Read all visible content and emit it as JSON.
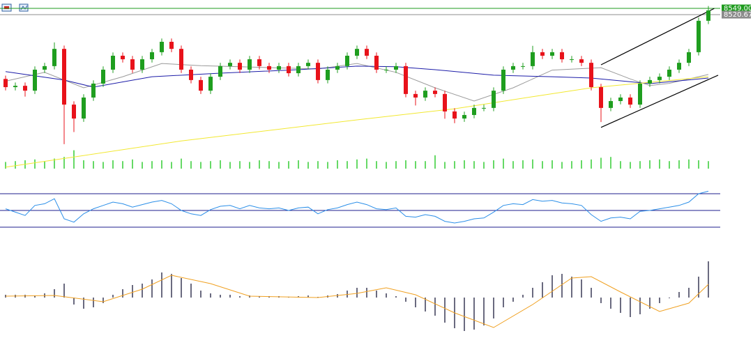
{
  "chart_data": [
    {
      "type": "candlestick",
      "open": [
        8230,
        8193,
        8199,
        8177,
        8272,
        8288,
        8366,
        8114,
        8051,
        8146,
        8209,
        8272,
        8335,
        8319,
        8272,
        8319,
        8351,
        8398,
        8366,
        8272,
        8225,
        8177,
        8240,
        8288,
        8303,
        8272,
        8319,
        8288,
        8272,
        8288,
        8256,
        8288,
        8303,
        8225,
        8272,
        8288,
        8335,
        8366,
        8335,
        8272,
        8272,
        8288,
        8162,
        8146,
        8177,
        8162,
        8083,
        8051,
        8067,
        8099,
        8099,
        8177,
        8272,
        8288,
        8288,
        8351,
        8335,
        8351,
        8319,
        8319,
        8303,
        8193,
        8099,
        8130,
        8146,
        8114,
        8209,
        8225,
        8240,
        8272,
        8303,
        8351,
        8493
      ],
      "high": [
        8245,
        8214,
        8214,
        8287,
        8303,
        8395,
        8381,
        8129,
        8161,
        8224,
        8287,
        8350,
        8350,
        8334,
        8334,
        8366,
        8413,
        8413,
        8381,
        8287,
        8240,
        8255,
        8303,
        8318,
        8318,
        8334,
        8334,
        8303,
        8303,
        8303,
        8303,
        8318,
        8318,
        8287,
        8303,
        8350,
        8381,
        8381,
        8350,
        8287,
        8303,
        8303,
        8177,
        8192,
        8192,
        8177,
        8098,
        8082,
        8114,
        8114,
        8192,
        8287,
        8303,
        8303,
        8380,
        8366,
        8366,
        8366,
        8334,
        8334,
        8318,
        8208,
        8145,
        8161,
        8161,
        8224,
        8240,
        8255,
        8287,
        8318,
        8366,
        8508,
        8560
      ],
      "low": [
        8178,
        8178,
        8150,
        8162,
        8257,
        8273,
        7935,
        7990,
        8036,
        8131,
        8194,
        8257,
        8304,
        8257,
        8257,
        8304,
        8336,
        8351,
        8257,
        8210,
        8162,
        8162,
        8225,
        8273,
        8257,
        8257,
        8273,
        8257,
        8257,
        8241,
        8241,
        8273,
        8210,
        8210,
        8257,
        8273,
        8320,
        8320,
        8257,
        8257,
        8257,
        8147,
        8110,
        8131,
        8147,
        8050,
        8030,
        8036,
        8052,
        8084,
        8084,
        8162,
        8257,
        8273,
        8273,
        8320,
        8320,
        8304,
        8304,
        8288,
        8178,
        8035,
        8084,
        8115,
        8099,
        8099,
        8194,
        8210,
        8225,
        8257,
        8288,
        8336,
        8478
      ],
      "close": [
        8193,
        8199,
        8177,
        8272,
        8288,
        8366,
        8114,
        8051,
        8146,
        8209,
        8272,
        8335,
        8319,
        8272,
        8319,
        8351,
        8398,
        8366,
        8272,
        8225,
        8177,
        8240,
        8288,
        8303,
        8272,
        8319,
        8288,
        8272,
        8288,
        8256,
        8288,
        8303,
        8225,
        8272,
        8288,
        8335,
        8366,
        8335,
        8272,
        8272,
        8288,
        8162,
        8146,
        8177,
        8162,
        8083,
        8051,
        8067,
        8099,
        8099,
        8177,
        8272,
        8288,
        8288,
        8351,
        8335,
        8351,
        8319,
        8319,
        8303,
        8193,
        8099,
        8130,
        8146,
        8114,
        8209,
        8225,
        8240,
        8272,
        8303,
        8351,
        8493,
        8540
      ],
      "up_color": "#1f9e1f",
      "down_color": "#e8121a",
      "ylim": [
        7815,
        8587
      ],
      "volume": [
        8,
        9,
        10,
        11,
        9,
        12,
        14,
        22,
        10,
        9,
        8,
        10,
        9,
        11,
        8,
        9,
        10,
        8,
        12,
        9,
        8,
        9,
        10,
        8,
        9,
        8,
        10,
        9,
        8,
        9,
        10,
        8,
        9,
        8,
        10,
        9,
        11,
        12,
        9,
        8,
        9,
        10,
        9,
        9,
        16,
        8,
        9,
        10,
        9,
        8,
        10,
        12,
        9,
        10,
        11,
        9,
        10,
        8,
        9,
        10,
        11,
        13,
        14,
        9,
        8,
        9,
        10,
        11,
        9,
        10,
        11,
        10,
        9
      ],
      "volume_color": "#33cc33",
      "overlays": [
        {
          "color": "#9a9a9a",
          "x": [
            0,
            4,
            8,
            12,
            16,
            20,
            24,
            28,
            32,
            36,
            40,
            44,
            48,
            52,
            56,
            61,
            64,
            66,
            68,
            72
          ],
          "values": [
            8220,
            8260,
            8190,
            8240,
            8300,
            8290,
            8285,
            8280,
            8275,
            8300,
            8260,
            8190,
            8130,
            8190,
            8270,
            8281,
            8230,
            8200,
            8210,
            8250
          ]
        },
        {
          "color": "#1c1ca8",
          "x": [
            0,
            6,
            9,
            15,
            22,
            30,
            36,
            40,
            44,
            50,
            56,
            60,
            66,
            72
          ],
          "values": [
            8263,
            8225,
            8193,
            8240,
            8256,
            8272,
            8288,
            8285,
            8272,
            8247,
            8240,
            8234,
            8209,
            8234
          ]
        },
        {
          "color": "#f2e830",
          "x": [
            0,
            18,
            36,
            46,
            54,
            60,
            66,
            72
          ],
          "values": [
            7831,
            7950,
            8045,
            8095,
            8150,
            8190,
            8215,
            8240
          ]
        }
      ],
      "trendlines": [
        {
          "color": "#000000",
          "x": [
            61,
            72.6
          ],
          "values": [
            8294,
            8549
          ]
        },
        {
          "color": "#000000",
          "x": [
            61,
            73
          ],
          "values": [
            8011,
            8247
          ]
        }
      ],
      "price_lines": [
        {
          "value": 8549,
          "label": "8549.00",
          "color": "#1e9b1e"
        },
        {
          "value": 8520.67,
          "label": "8520.67",
          "color": "#8c8c8c"
        }
      ]
    },
    {
      "type": "line",
      "values": [
        52,
        48,
        44,
        56,
        58,
        64,
        40,
        36,
        46,
        52,
        56,
        60,
        58,
        54,
        57,
        60,
        62,
        58,
        50,
        46,
        44,
        51,
        55,
        56,
        52,
        56,
        53,
        52,
        53,
        50,
        53,
        54,
        46,
        51,
        53,
        57,
        60,
        57,
        52,
        51,
        53,
        43,
        42,
        45,
        43,
        37,
        35,
        37,
        40,
        41,
        48,
        56,
        58,
        57,
        63,
        61,
        62,
        59,
        58,
        56,
        45,
        37,
        41,
        42,
        40,
        49,
        50,
        52,
        54,
        56,
        60,
        70,
        73
      ],
      "color": "#2a8ee8",
      "ylim": [
        20,
        80
      ],
      "levels": [
        70,
        50,
        30
      ],
      "level_color": "#1c1c8c"
    },
    {
      "type": "bar",
      "values": [
        4,
        4,
        4,
        3,
        6,
        12,
        20,
        -10,
        -16,
        -14,
        -8,
        4,
        12,
        18,
        20,
        26,
        36,
        34,
        28,
        20,
        10,
        6,
        4,
        4,
        2,
        3,
        2,
        2,
        2,
        1,
        2,
        3,
        1,
        3,
        5,
        10,
        14,
        14,
        10,
        6,
        2,
        -6,
        -14,
        -20,
        -26,
        -36,
        -44,
        -48,
        -46,
        -40,
        -30,
        -14,
        -6,
        4,
        14,
        22,
        32,
        34,
        30,
        26,
        14,
        -8,
        -16,
        -22,
        -28,
        -24,
        -16,
        -8,
        0,
        8,
        14,
        30,
        52
      ],
      "color": "#1a1a3a",
      "ylim": [
        -60,
        60
      ],
      "signal": {
        "color": "#f0a020",
        "x": [
          0,
          5,
          10,
          14,
          17,
          21,
          25,
          32,
          36,
          39,
          42,
          46,
          50,
          54,
          58,
          60,
          63,
          67,
          70,
          72
        ],
        "values": [
          2,
          3,
          -6,
          12,
          32,
          20,
          2,
          0,
          6,
          14,
          4,
          -22,
          -43,
          -10,
          28,
          30,
          8,
          -20,
          -8,
          19
        ]
      }
    }
  ]
}
